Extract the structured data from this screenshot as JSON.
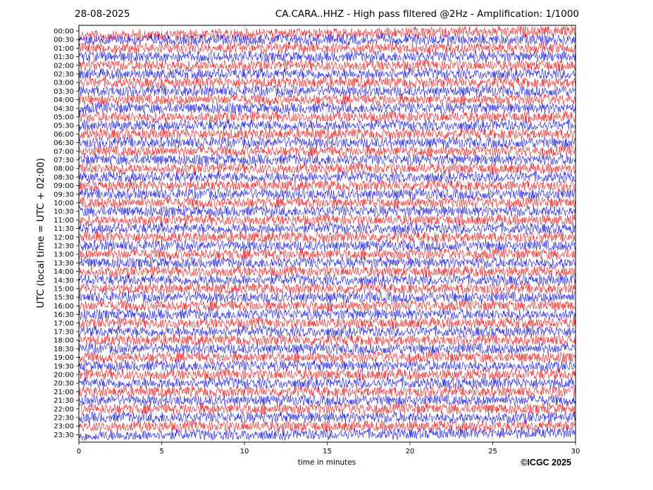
{
  "header": {
    "date": "28-08-2025",
    "title": "CA.CARA..HHZ - High pass filtered @2Hz - Amplification: 1/1000"
  },
  "footer": {
    "copyright": "©ICGC 2025"
  },
  "chart_data": {
    "type": "line",
    "kind": "helicorder",
    "xlabel": "time in minutes",
    "ylabel": "UTC (local time = UTC + 02:00)",
    "xlim": [
      0,
      30
    ],
    "x_ticks": [
      "0",
      "5",
      "10",
      "15",
      "20",
      "25",
      "30"
    ],
    "y_ticks": [
      "00:00",
      "00:30",
      "01:00",
      "01:30",
      "02:00",
      "02:30",
      "03:00",
      "03:30",
      "04:00",
      "04:30",
      "05:00",
      "05:30",
      "06:00",
      "06:30",
      "07:00",
      "07:30",
      "08:00",
      "08:30",
      "09:00",
      "09:30",
      "10:00",
      "10:30",
      "11:00",
      "11:30",
      "12:00",
      "12:30",
      "13:00",
      "13:30",
      "14:00",
      "14:30",
      "15:00",
      "15:30",
      "16:00",
      "16:30",
      "17:00",
      "17:30",
      "18:00",
      "18:30",
      "19:00",
      "19:30",
      "20:00",
      "20:30",
      "21:00",
      "21:30",
      "22:00",
      "22:30",
      "23:00",
      "23:30"
    ],
    "trace_colors": [
      "#ff0000",
      "#0000ff"
    ],
    "grid": true
  }
}
